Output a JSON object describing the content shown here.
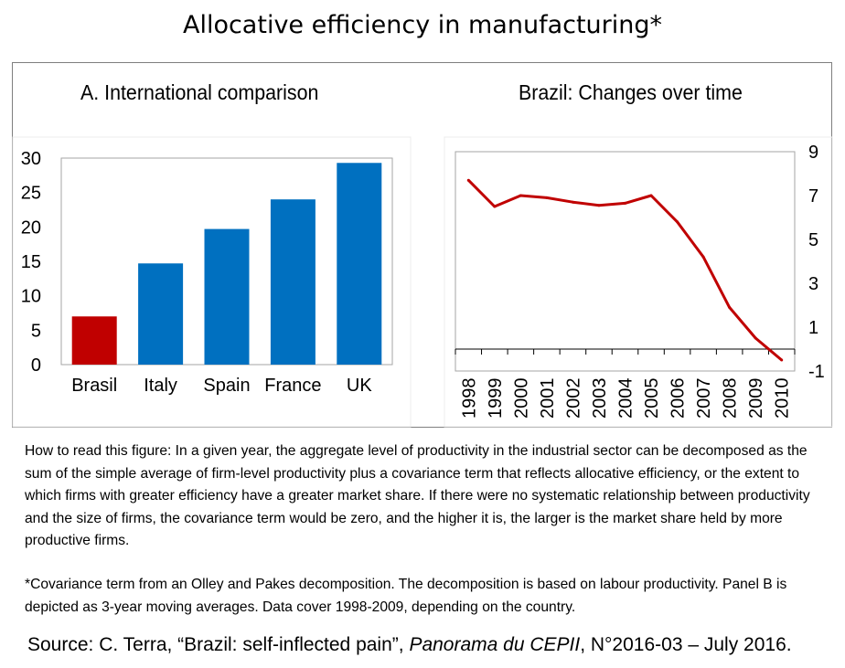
{
  "title": "Allocative efficiency in manufacturing*",
  "chart_data": [
    {
      "type": "bar",
      "title": "A. International comparison",
      "categories": [
        "Brasil",
        "Italy",
        "Spain",
        "France",
        "UK"
      ],
      "values": [
        7.0,
        14.7,
        19.7,
        24.0,
        29.3
      ],
      "ylim": [
        0,
        30
      ],
      "yticks": [
        0,
        5,
        10,
        15,
        20,
        25,
        30
      ],
      "colors": [
        "#c00000",
        "#0070c0",
        "#0070c0",
        "#0070c0",
        "#0070c0"
      ],
      "axis_side": "left",
      "grid": false
    },
    {
      "type": "line",
      "title": "Brazil: Changes over time",
      "x": [
        "1998",
        "1999",
        "2000",
        "2001",
        "2002",
        "2003",
        "2004",
        "2005",
        "2006",
        "2007",
        "2008",
        "2009",
        "2010"
      ],
      "values": [
        7.7,
        6.5,
        7.0,
        6.9,
        6.7,
        6.55,
        6.65,
        7.0,
        5.8,
        4.2,
        1.9,
        0.5,
        -0.5
      ],
      "ylim": [
        -1,
        9
      ],
      "yticks": [
        -1,
        1,
        3,
        5,
        7,
        9
      ],
      "color": "#c00000",
      "axis_side": "right",
      "grid": false
    }
  ],
  "note": {
    "how_to_read": "How to read this figure: In a given year, the aggregate level of productivity in the industrial sector can be decomposed as the sum of the simple average of firm-level productivity plus a covariance term that reflects allocative efficiency, or the extent to which firms with greater efficiency have a greater market share. If there were no systematic relationship between productivity and the size of firms, the covariance term would be zero, and the higher it is, the larger is the market share held by more productive firms.",
    "footnote": "*Covariance term from an Olley and Pakes decomposition. The decomposition is based on labour productivity. Panel B is depicted as 3-year moving averages. Data cover 1998-2009, depending on the country."
  },
  "source": {
    "prefix": "Source: C. Terra, “Brazil: self-inflected pain”, ",
    "journal": "Panorama du CEPII",
    "suffix": ", N°2016-03 – July 2016."
  }
}
